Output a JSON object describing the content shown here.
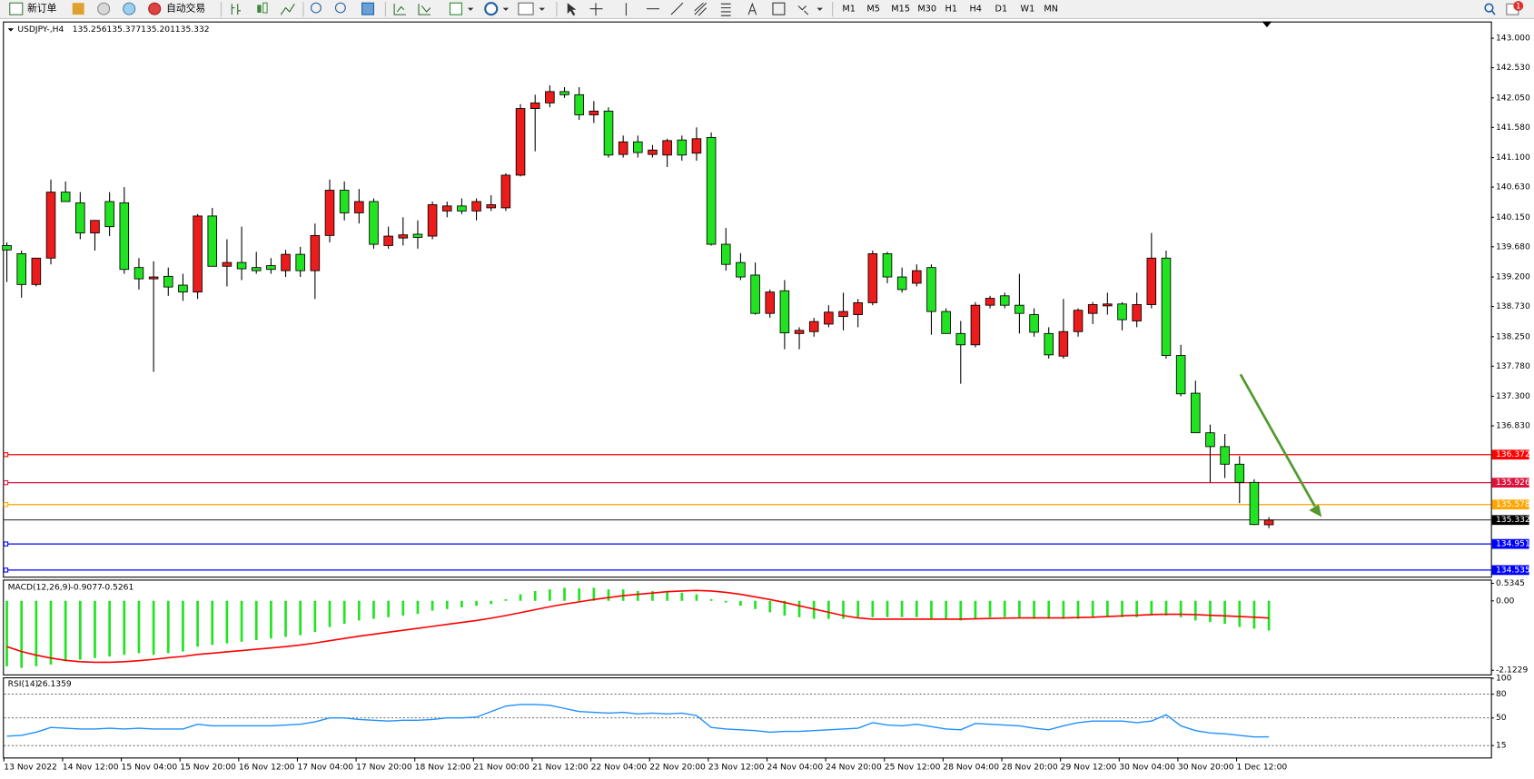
{
  "toolbar": {
    "new_order": "新订单",
    "auto_trading": "自动交易",
    "timeframes": [
      "M1",
      "M5",
      "M15",
      "M30",
      "H1",
      "H4",
      "D1",
      "W1",
      "MN"
    ],
    "notification_count": 1
  },
  "chart_data": [
    {
      "type": "candlestick",
      "title": "USDJPY-,H4",
      "up_color": "#ec1c1c",
      "down_color": "#22e322",
      "categories": [
        "13 Nov 2022",
        null,
        null,
        null,
        "14 Nov 12:00",
        null,
        null,
        null,
        "15 Nov 04:00",
        null,
        null,
        null,
        "15 Nov 20:00",
        null,
        null,
        null,
        "16 Nov 12:00",
        null,
        null,
        null,
        "17 Nov 04:00",
        null,
        null,
        null,
        "17 Nov 20:00",
        null,
        null,
        null,
        "18 Nov 12:00",
        null,
        null,
        null,
        "21 Nov 00:00",
        null,
        null,
        null,
        "21 Nov 12:00",
        null,
        null,
        null,
        "22 Nov 04:00",
        null,
        null,
        null,
        "22 Nov 20:00",
        null,
        null,
        null,
        "23 Nov 12:00",
        null,
        null,
        null,
        "24 Nov 04:00",
        null,
        null,
        null,
        "24 Nov 20:00",
        null,
        null,
        null,
        "25 Nov 12:00",
        null,
        null,
        null,
        "28 Nov 04:00",
        null,
        null,
        null,
        "28 Nov 20:00",
        null,
        null,
        null,
        "29 Nov 12:00",
        null,
        null,
        null,
        "30 Nov 04:00",
        null,
        null,
        null,
        "30 Nov 20:00",
        null,
        null,
        null,
        "1 Dec 12:00",
        null,
        null
      ],
      "candles": [
        [
          139.7,
          139.75,
          139.12,
          139.63
        ],
        [
          139.57,
          139.62,
          138.87,
          139.08
        ],
        [
          139.08,
          139.5,
          139.05,
          139.5
        ],
        [
          139.5,
          140.75,
          139.4,
          140.55
        ],
        [
          140.55,
          140.72,
          140.4,
          140.4
        ],
        [
          140.38,
          140.55,
          139.8,
          139.9
        ],
        [
          139.9,
          140.1,
          139.62,
          140.1
        ],
        [
          140.4,
          140.55,
          139.85,
          140.0
        ],
        [
          140.38,
          140.63,
          139.25,
          139.32
        ],
        [
          139.35,
          139.5,
          139.0,
          139.17
        ],
        [
          139.17,
          139.45,
          137.69,
          139.2
        ],
        [
          139.21,
          139.35,
          138.9,
          139.04
        ],
        [
          139.07,
          139.25,
          138.82,
          138.96
        ],
        [
          138.96,
          140.2,
          138.85,
          140.17
        ],
        [
          140.17,
          140.3,
          139.4,
          139.37
        ],
        [
          139.37,
          139.8,
          139.05,
          139.43
        ],
        [
          139.43,
          140.0,
          139.15,
          139.33
        ],
        [
          139.35,
          139.6,
          139.25,
          139.3
        ],
        [
          139.38,
          139.5,
          139.25,
          139.32
        ],
        [
          139.3,
          139.63,
          139.2,
          139.56
        ],
        [
          139.56,
          139.68,
          139.2,
          139.3
        ],
        [
          139.3,
          140.05,
          138.85,
          139.86
        ],
        [
          139.86,
          140.75,
          139.75,
          140.58
        ],
        [
          140.58,
          140.72,
          140.1,
          140.22
        ],
        [
          140.22,
          140.6,
          140.05,
          140.4
        ],
        [
          140.4,
          140.45,
          139.65,
          139.72
        ],
        [
          139.7,
          140.0,
          139.65,
          139.85
        ],
        [
          139.82,
          140.15,
          139.7,
          139.87
        ],
        [
          139.88,
          140.1,
          139.65,
          139.83
        ],
        [
          139.85,
          140.4,
          139.8,
          140.35
        ],
        [
          140.25,
          140.4,
          140.15,
          140.33
        ],
        [
          140.33,
          140.45,
          140.2,
          140.25
        ],
        [
          140.25,
          140.45,
          140.1,
          140.4
        ],
        [
          140.3,
          140.5,
          140.25,
          140.35
        ],
        [
          140.3,
          140.85,
          140.25,
          140.82
        ],
        [
          140.82,
          141.95,
          140.8,
          141.88
        ],
        [
          141.88,
          142.1,
          141.2,
          141.97
        ],
        [
          141.97,
          142.25,
          141.9,
          142.15
        ],
        [
          142.15,
          142.22,
          142.05,
          142.1
        ],
        [
          142.1,
          142.22,
          141.7,
          141.78
        ],
        [
          141.78,
          142.0,
          141.65,
          141.84
        ],
        [
          141.84,
          141.9,
          141.1,
          141.14
        ],
        [
          141.15,
          141.45,
          141.1,
          141.35
        ],
        [
          141.35,
          141.45,
          141.1,
          141.18
        ],
        [
          141.15,
          141.3,
          141.1,
          141.22
        ],
        [
          141.14,
          141.4,
          140.95,
          141.37
        ],
        [
          141.38,
          141.45,
          141.05,
          141.14
        ],
        [
          141.17,
          141.58,
          141.05,
          141.4
        ],
        [
          141.42,
          141.5,
          139.7,
          139.72
        ],
        [
          139.72,
          139.98,
          139.3,
          139.4
        ],
        [
          139.43,
          139.58,
          139.15,
          139.2
        ],
        [
          139.23,
          139.43,
          138.6,
          138.62
        ],
        [
          138.62,
          139.0,
          138.55,
          138.96
        ],
        [
          138.98,
          139.15,
          138.05,
          138.31
        ],
        [
          138.3,
          138.4,
          138.05,
          138.35
        ],
        [
          138.33,
          138.55,
          138.25,
          138.49
        ],
        [
          138.45,
          138.75,
          138.4,
          138.64
        ],
        [
          138.57,
          138.95,
          138.35,
          138.65
        ],
        [
          138.6,
          138.85,
          138.4,
          138.79
        ],
        [
          138.79,
          139.62,
          138.75,
          139.57
        ],
        [
          139.57,
          139.6,
          139.1,
          139.2
        ],
        [
          139.2,
          139.35,
          138.95,
          139.0
        ],
        [
          139.1,
          139.4,
          139.05,
          139.3
        ],
        [
          139.35,
          139.4,
          138.28,
          138.65
        ],
        [
          138.65,
          138.7,
          138.3,
          138.3
        ],
        [
          138.3,
          138.5,
          137.5,
          138.12
        ],
        [
          138.12,
          138.8,
          138.08,
          138.75
        ],
        [
          138.75,
          138.9,
          138.7,
          138.86
        ],
        [
          138.9,
          138.95,
          138.7,
          138.75
        ],
        [
          138.75,
          139.25,
          138.3,
          138.62
        ],
        [
          138.6,
          138.7,
          138.25,
          138.32
        ],
        [
          138.3,
          138.4,
          137.9,
          137.96
        ],
        [
          137.94,
          138.85,
          137.9,
          138.33
        ],
        [
          138.33,
          138.7,
          138.25,
          138.67
        ],
        [
          138.62,
          138.8,
          138.45,
          138.76
        ],
        [
          138.74,
          138.95,
          138.6,
          138.77
        ],
        [
          138.77,
          138.8,
          138.35,
          138.52
        ],
        [
          138.5,
          138.95,
          138.4,
          138.76
        ],
        [
          138.76,
          139.9,
          138.7,
          139.5
        ],
        [
          139.5,
          139.62,
          137.9,
          137.95
        ],
        [
          137.95,
          138.12,
          137.3,
          137.34
        ],
        [
          137.35,
          137.55,
          136.8,
          136.72
        ],
        [
          136.72,
          136.85,
          135.93,
          136.5
        ],
        [
          136.5,
          136.7,
          136.0,
          136.22
        ],
        [
          136.22,
          136.35,
          135.6,
          135.93
        ],
        [
          135.93,
          135.98,
          135.25,
          135.26
        ],
        [
          135.256,
          135.377,
          135.201,
          135.332
        ]
      ],
      "ylim": [
        134.43,
        143.25
      ],
      "yticks": [
        {
          "value": 143,
          "label": "143.000"
        },
        {
          "value": 142.53,
          "label": "142.530"
        },
        {
          "value": 142.05,
          "label": "142.050"
        },
        {
          "value": 141.58,
          "label": "141.580"
        },
        {
          "value": 141.1,
          "label": "141.100"
        },
        {
          "value": 140.63,
          "label": "140.630"
        },
        {
          "value": 140.15,
          "label": "140.150"
        },
        {
          "value": 139.68,
          "label": "139.680"
        },
        {
          "value": 139.2,
          "label": "139.200"
        },
        {
          "value": 138.73,
          "label": "138.730"
        },
        {
          "value": 138.25,
          "label": "138.250"
        },
        {
          "value": 137.78,
          "label": "137.780"
        },
        {
          "value": 137.3,
          "label": "137.300"
        },
        {
          "value": 136.83,
          "label": "136.830"
        }
      ],
      "levels": [
        {
          "value": 136.372,
          "color": "#ff0000"
        },
        {
          "value": 135.926,
          "color": "#dc143c"
        },
        {
          "value": 135.578,
          "color": "#ffa500"
        },
        {
          "value": 134.951,
          "color": "#0000ff"
        },
        {
          "value": 134.535,
          "color": "#0000ff"
        }
      ]
    },
    {
      "type": "macd",
      "title": "MACD(12,26,9)",
      "histogram": {
        "color": "#22e322",
        "values": [
          -2.0,
          -2.05,
          -2.0,
          -1.95,
          -1.85,
          -1.8,
          -1.75,
          -1.7,
          -1.65,
          -1.6,
          -1.65,
          -1.6,
          -1.55,
          -1.4,
          -1.35,
          -1.3,
          -1.25,
          -1.2,
          -1.15,
          -1.1,
          -1.05,
          -0.95,
          -0.8,
          -0.7,
          -0.6,
          -0.55,
          -0.5,
          -0.45,
          -0.4,
          -0.3,
          -0.25,
          -0.2,
          -0.15,
          -0.1,
          0.05,
          0.2,
          0.3,
          0.35,
          0.4,
          0.38,
          0.4,
          0.35,
          0.35,
          0.3,
          0.3,
          0.28,
          0.25,
          0.2,
          0.05,
          -0.05,
          -0.15,
          -0.25,
          -0.35,
          -0.45,
          -0.5,
          -0.55,
          -0.55,
          -0.55,
          -0.5,
          -0.5,
          -0.5,
          -0.5,
          -0.5,
          -0.55,
          -0.55,
          -0.6,
          -0.55,
          -0.5,
          -0.5,
          -0.5,
          -0.55,
          -0.55,
          -0.55,
          -0.55,
          -0.5,
          -0.5,
          -0.5,
          -0.5,
          -0.45,
          -0.45,
          -0.5,
          -0.6,
          -0.65,
          -0.7,
          -0.8,
          -0.85,
          -0.9077
        ]
      },
      "signal": {
        "color": "#ff0000",
        "values": [
          -1.4,
          -1.55,
          -1.66,
          -1.75,
          -1.82,
          -1.86,
          -1.88,
          -1.88,
          -1.86,
          -1.83,
          -1.79,
          -1.74,
          -1.7,
          -1.64,
          -1.6,
          -1.56,
          -1.52,
          -1.48,
          -1.44,
          -1.4,
          -1.35,
          -1.29,
          -1.22,
          -1.15,
          -1.08,
          -1.02,
          -0.96,
          -0.9,
          -0.84,
          -0.78,
          -0.72,
          -0.66,
          -0.6,
          -0.53,
          -0.45,
          -0.36,
          -0.27,
          -0.18,
          -0.1,
          -0.03,
          0.04,
          0.1,
          0.16,
          0.2,
          0.24,
          0.28,
          0.3,
          0.32,
          0.3,
          0.26,
          0.2,
          0.12,
          0.04,
          -0.05,
          -0.15,
          -0.25,
          -0.35,
          -0.45,
          -0.52,
          -0.56,
          -0.56,
          -0.56,
          -0.56,
          -0.56,
          -0.56,
          -0.56,
          -0.55,
          -0.54,
          -0.53,
          -0.52,
          -0.52,
          -0.52,
          -0.52,
          -0.51,
          -0.5,
          -0.48,
          -0.46,
          -0.44,
          -0.42,
          -0.41,
          -0.41,
          -0.42,
          -0.44,
          -0.46,
          -0.48,
          -0.5,
          -0.5261
        ]
      },
      "ylim": [
        -2.25,
        0.62
      ],
      "yticks": [
        0.5345,
        {
          "value": 0,
          "label": "0.00"
        },
        -2.1229
      ]
    },
    {
      "type": "line",
      "title": "RSI(14)",
      "color": "#1e90ff",
      "values": [
        27,
        28,
        32,
        38,
        37,
        36,
        36,
        37,
        36,
        37,
        36,
        36,
        36,
        42,
        40,
        40,
        40,
        40,
        40,
        41,
        42,
        45,
        50,
        50,
        48,
        47,
        46,
        47,
        47,
        48,
        50,
        50,
        51,
        58,
        65,
        67,
        67,
        66,
        62,
        58,
        57,
        56,
        57,
        55,
        56,
        55,
        56,
        53,
        38,
        36,
        35,
        34,
        32,
        33,
        33,
        34,
        35,
        36,
        37,
        44,
        41,
        40,
        42,
        39,
        36,
        35,
        43,
        42,
        41,
        40,
        37,
        35,
        40,
        44,
        46,
        46,
        46,
        44,
        46,
        54,
        40,
        34,
        31,
        30,
        28,
        26,
        26.1359
      ],
      "ylim": [
        0,
        100
      ],
      "yticks": [
        100,
        80,
        50,
        15
      ],
      "levels": [
        80,
        50,
        15
      ]
    }
  ]
}
